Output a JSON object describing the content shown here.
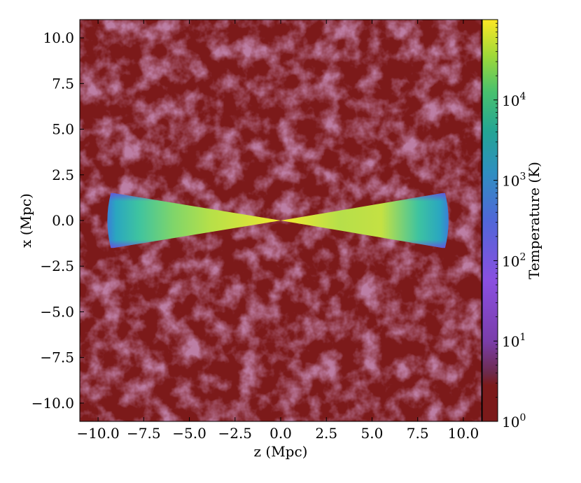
{
  "chart_data": {
    "type": "heatmap",
    "title": "",
    "xlabel": "z  (Mpc)",
    "ylabel": "x  (Mpc)",
    "xlim": [
      -11.0,
      11.0
    ],
    "ylim": [
      -11.0,
      11.0
    ],
    "xticks": [
      -10.0,
      -7.5,
      -5.0,
      -2.5,
      0.0,
      2.5,
      5.0,
      7.5,
      10.0
    ],
    "yticks": [
      -10.0,
      -7.5,
      -5.0,
      -2.5,
      0.0,
      2.5,
      5.0,
      7.5,
      10.0
    ],
    "xtick_labels": [
      "−10.0",
      "−7.5",
      "−5.0",
      "−2.5",
      "0.0",
      "2.5",
      "5.0",
      "7.5",
      "10.0"
    ],
    "ytick_labels": [
      "−10.0",
      "−7.5",
      "−5.0",
      "−2.5",
      "0.0",
      "2.5",
      "5.0",
      "7.5",
      "10.0"
    ],
    "background_value_K": 1,
    "colorbar": {
      "label": "Temperature  (K)",
      "scale": "log",
      "range": [
        1,
        100000
      ],
      "colormap": "viridis",
      "ticks": [
        {
          "value": 1,
          "base": "10",
          "exp": "0"
        },
        {
          "value": 10,
          "base": "10",
          "exp": "1"
        },
        {
          "value": 100,
          "base": "10",
          "exp": "2"
        },
        {
          "value": 1000,
          "base": "10",
          "exp": "3"
        },
        {
          "value": 10000,
          "base": "10",
          "exp": "4"
        }
      ]
    },
    "heated_region": {
      "shape": "bicone",
      "apex": [
        0.0,
        0.0
      ],
      "z_extent": [
        -9.3,
        9.0
      ],
      "x_half_width_at_edge": 1.5,
      "temperature_range_K": [
        100,
        100000
      ]
    }
  },
  "colors": {
    "background_low": "#7c1a1a",
    "filament": "#8a3a62",
    "viridis_low": "#440154",
    "viridis_mid": "#21918c",
    "viridis_high": "#fde725"
  }
}
